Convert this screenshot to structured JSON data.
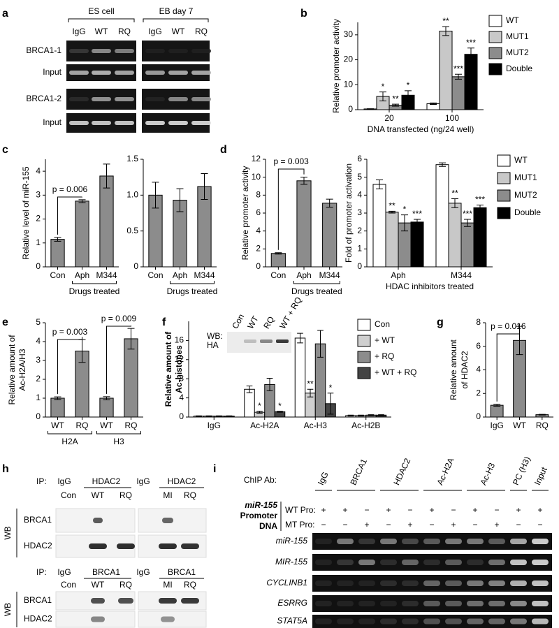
{
  "chart_data": [
    {
      "type": "bar",
      "panel": "b",
      "ylabel": "Relative promoter activity",
      "xlabel": "DNA transfected (ng/24 well)",
      "categories": [
        "20",
        "100"
      ],
      "ylim": [
        0,
        35
      ],
      "yticks": [
        0,
        10,
        20,
        30
      ],
      "series": [
        {
          "name": "WT",
          "color": "#ffffff",
          "values": [
            0.3,
            2.4
          ],
          "errors": [
            0.1,
            0.3
          ]
        },
        {
          "name": "MUT1",
          "color": "#c8c8c8",
          "values": [
            5.3,
            31.5
          ],
          "errors": [
            1.8,
            1.8
          ],
          "significance": [
            "*",
            "**"
          ]
        },
        {
          "name": "MUT2",
          "color": "#8c8c8c",
          "values": [
            1.8,
            13.2
          ],
          "errors": [
            0.4,
            1.0
          ],
          "significance": [
            "**",
            "***"
          ]
        },
        {
          "name": "Double",
          "color": "#000000",
          "values": [
            5.8,
            22.2
          ],
          "errors": [
            1.8,
            2.5
          ],
          "significance": [
            "*",
            "***"
          ]
        }
      ]
    },
    {
      "type": "bar",
      "panel": "c",
      "ylabel": "Relative level of miR-155",
      "categories": [
        "Con",
        "Aph",
        "M344"
      ],
      "values": [
        1.15,
        2.75,
        3.8
      ],
      "errors": [
        0.08,
        0.06,
        0.5
      ],
      "color": "#8c8c8c",
      "ylim": [
        0,
        4.5
      ],
      "yticks": [
        0,
        1,
        2,
        3,
        4
      ],
      "annotations": [
        "p = 0.006"
      ],
      "group_labels": [
        "Drugs treated"
      ]
    },
    {
      "type": "bar",
      "categories": [
        "Con",
        "Aph",
        "M344"
      ],
      "values": [
        1.0,
        0.93,
        1.12
      ],
      "errors": [
        0.18,
        0.16,
        0.18
      ],
      "color": "#8c8c8c",
      "ylim": [
        0,
        1.5
      ],
      "yticks": [
        0,
        0.5,
        {
          "value": 1,
          "label": "1.0"
        },
        1.5
      ],
      "group_labels": [
        "Drugs treated"
      ]
    },
    {
      "type": "bar",
      "panel": "d",
      "ylabel": "Relative promoter activity",
      "categories": [
        "Con",
        "Aph",
        "M344"
      ],
      "values": [
        1.5,
        9.6,
        7.1
      ],
      "errors": [
        0.08,
        0.4,
        0.45
      ],
      "color": "#8c8c8c",
      "ylim": [
        0,
        12
      ],
      "yticks": [
        0,
        2,
        4,
        6,
        8,
        10,
        12
      ],
      "annotations": [
        "p = 0.003"
      ],
      "group_labels": [
        "Drugs treated"
      ]
    },
    {
      "type": "bar",
      "ylabel": "Fold of promoter activation",
      "xlabel": "HDAC inhibitors treated",
      "categories": [
        "Aph",
        "M344"
      ],
      "ylim": [
        0,
        6
      ],
      "yticks": [
        0,
        1,
        2,
        3,
        4,
        5,
        6
      ],
      "series": [
        {
          "name": "WT",
          "color": "#ffffff",
          "values": [
            4.6,
            5.7
          ],
          "errors": [
            0.25,
            0.1
          ]
        },
        {
          "name": "MUT1",
          "color": "#c8c8c8",
          "values": [
            3.05,
            3.55
          ],
          "errors": [
            0.05,
            0.25
          ],
          "significance": [
            "**",
            "**"
          ]
        },
        {
          "name": "MUT2",
          "color": "#8c8c8c",
          "values": [
            2.45,
            2.45
          ],
          "errors": [
            0.45,
            0.2
          ],
          "significance": [
            "*",
            "***"
          ]
        },
        {
          "name": "Double",
          "color": "#000000",
          "values": [
            2.5,
            3.3
          ],
          "errors": [
            0.15,
            0.15
          ],
          "significance": [
            "***",
            "***"
          ]
        }
      ]
    },
    {
      "type": "bar",
      "panel": "e",
      "ylabel": [
        "Relative amount of",
        "Ac-H2A/H3"
      ],
      "categories": [
        "WT",
        "RQ",
        "WT",
        "RQ"
      ],
      "values": [
        1.0,
        3.5,
        1.0,
        4.15
      ],
      "errors": [
        0.07,
        0.6,
        0.08,
        0.55
      ],
      "color": "#8c8c8c",
      "ylim": [
        0,
        5
      ],
      "yticks": [
        0,
        1,
        2,
        3,
        4,
        5
      ],
      "annotations": [
        "p = 0.003",
        "p = 0.009"
      ],
      "group_labels": [
        "H2A",
        "H3"
      ]
    },
    {
      "type": "bar",
      "panel": "f",
      "ylabel": [
        "Relative amount of",
        "Ac-histones"
      ],
      "categories": [
        "IgG",
        "Ac-H2A",
        "Ac-H3",
        "Ac-H2B"
      ],
      "ylim": [
        0,
        20
      ],
      "yticks": [
        0,
        4,
        8,
        12,
        16
      ],
      "series": [
        {
          "name": "Con",
          "color": "#ffffff",
          "values": [
            0.2,
            5.8,
            16.5,
            0.3
          ],
          "errors": [
            0.05,
            0.7,
            1.0,
            0.1
          ]
        },
        {
          "name": "+ WT",
          "color": "#cfcfcf",
          "values": [
            0.2,
            1.0,
            5.0,
            0.3
          ],
          "errors": [
            0.05,
            0.2,
            0.8,
            0.1
          ],
          "significance": [
            null,
            "*",
            "**",
            null
          ]
        },
        {
          "name": "+ RQ",
          "color": "#8c8c8c",
          "values": [
            0.2,
            6.8,
            15.3,
            0.4
          ],
          "errors": [
            0.05,
            1.3,
            2.8,
            0.1
          ]
        },
        {
          "name": "+ WT + RQ",
          "color": "#444444",
          "values": [
            0.2,
            1.1,
            2.8,
            0.4
          ],
          "errors": [
            0.05,
            0.1,
            2.2,
            0.1
          ],
          "significance": [
            null,
            "*",
            "*",
            null
          ]
        }
      ]
    },
    {
      "type": "bar",
      "panel": "g",
      "ylabel": [
        "Relative amount",
        "of HDAC2"
      ],
      "categories": [
        "IgG",
        "WT",
        "RQ"
      ],
      "values": [
        1.0,
        6.5,
        0.2
      ],
      "errors": [
        0.08,
        1.2,
        0.03
      ],
      "color": "#8c8c8c",
      "ylim": [
        0,
        8
      ],
      "yticks": [
        0,
        2,
        4,
        6,
        8
      ],
      "annotations": [
        "p = 0.016"
      ]
    }
  ],
  "blots": {
    "a": {
      "letter": "a",
      "groups": [
        "ES cell",
        "EB day 7"
      ],
      "lanes": [
        "IgG",
        "WT",
        "RQ",
        "IgG",
        "WT",
        "RQ"
      ],
      "rows": [
        "BRCA1-1",
        "Input",
        "BRCA1-2",
        "Input"
      ]
    },
    "f_inset": {
      "label": [
        "WB:",
        "HA"
      ],
      "lanes": [
        "Con",
        "WT",
        "RQ",
        "WT + RQ"
      ]
    },
    "h": {
      "letter": "h",
      "blocks": [
        {
          "ip": "IP:",
          "antibodies": [
            "IgG",
            "HDAC2",
            "IgG",
            "HDAC2"
          ],
          "lanes": [
            "Con",
            "WT",
            "RQ",
            "MI",
            "RQ"
          ],
          "side": "WB",
          "rows": [
            "BRCA1",
            "HDAC2"
          ]
        },
        {
          "ip": "IP:",
          "antibodies": [
            "IgG",
            "BRCA1",
            "IgG",
            "BRCA1"
          ],
          "lanes": [
            "Con",
            "WT",
            "RQ",
            "MI",
            "RQ"
          ],
          "side": "WB",
          "rows": [
            "BRCA1",
            "HDAC2"
          ]
        }
      ]
    },
    "i": {
      "letter": "i",
      "header": "ChIP Ab:",
      "antibodies": [
        "IgG",
        "BRCA1",
        "HDAC2",
        "Ac-H2A",
        "Ac-H3",
        "PC (H3)",
        "Input"
      ],
      "promoter": [
        "miR-155",
        "Promoter",
        "DNA"
      ],
      "conditions": [
        {
          "label": "WT Pro:",
          "marks": [
            "+",
            "+",
            "−",
            "+",
            "−",
            "+",
            "−",
            "+",
            "−",
            "+",
            "+"
          ]
        },
        {
          "label": "MT Pro:",
          "marks": [
            "−",
            "−",
            "+",
            "−",
            "+",
            "−",
            "+",
            "−",
            "+",
            "−",
            "−"
          ]
        }
      ],
      "rows": [
        "miR-155",
        "MIR-155",
        "CYCLINB1",
        "ESRRG",
        "STAT5A"
      ]
    }
  }
}
